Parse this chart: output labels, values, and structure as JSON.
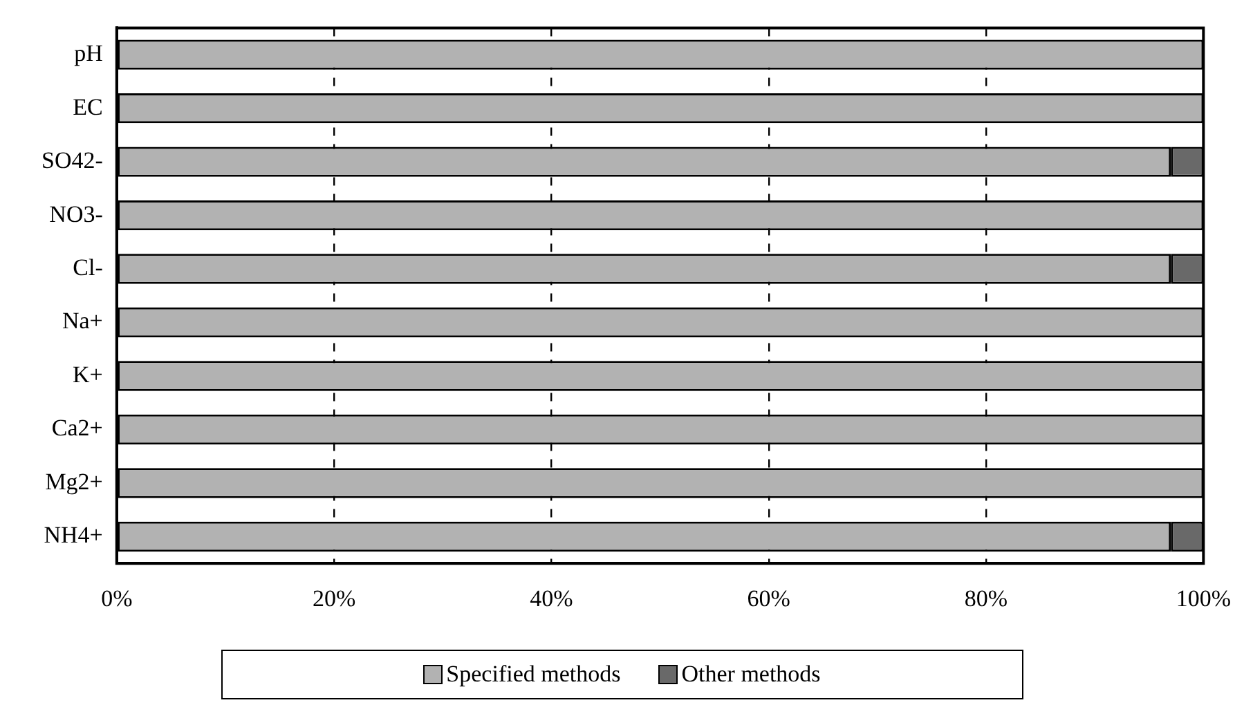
{
  "chart_data": {
    "type": "bar",
    "orientation": "horizontal",
    "stacked": true,
    "categories": [
      "pH",
      "EC",
      "SO42-",
      "NO3-",
      "Cl-",
      "Na+",
      "K+",
      "Ca2+",
      "Mg2+",
      "NH4+"
    ],
    "series": [
      {
        "name": "Specified methods",
        "color": "#b2b2b2",
        "values": [
          100,
          100,
          97,
          100,
          97,
          100,
          100,
          100,
          100,
          97
        ]
      },
      {
        "name": "Other methods",
        "color": "#696969",
        "values": [
          0,
          0,
          3,
          0,
          3,
          0,
          0,
          0,
          0,
          3
        ]
      }
    ],
    "xlim": [
      0,
      100
    ],
    "xticks": [
      {
        "value": 0,
        "label": "0%"
      },
      {
        "value": 20,
        "label": "20%"
      },
      {
        "value": 40,
        "label": "40%"
      },
      {
        "value": 60,
        "label": "60%"
      },
      {
        "value": 80,
        "label": "80%"
      },
      {
        "value": 100,
        "label": "100%"
      }
    ],
    "grid": "x",
    "legend": "bottom"
  }
}
